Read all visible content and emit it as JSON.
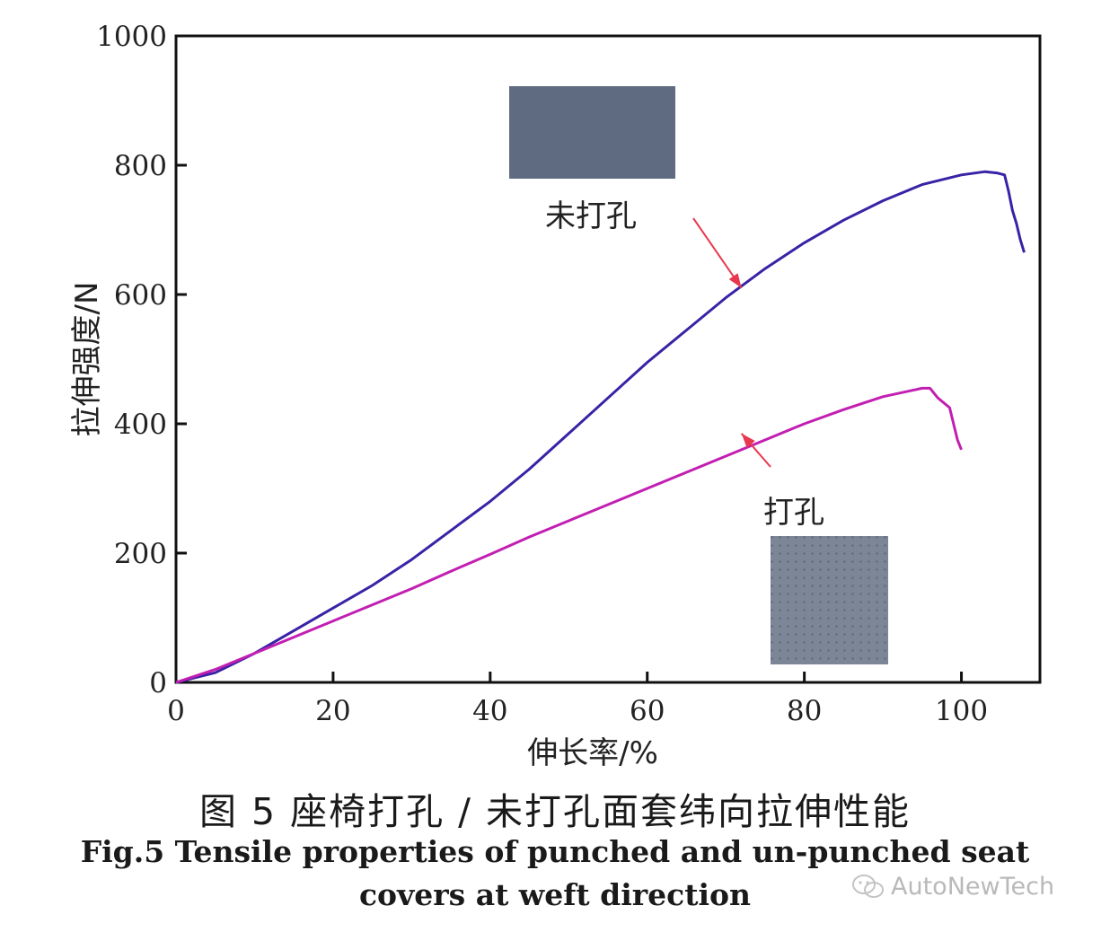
{
  "chart_data": {
    "type": "line",
    "xlabel": "伸长率/%",
    "ylabel": "拉伸强度/N",
    "xlim": [
      0,
      110
    ],
    "ylim": [
      0,
      1000
    ],
    "xticks": [
      0,
      20,
      40,
      60,
      80,
      100
    ],
    "yticks": [
      0,
      200,
      400,
      600,
      800,
      1000
    ],
    "grid": false,
    "colors": {
      "unpunched": "#3a22a6",
      "punched": "#c21fb2",
      "arrow": "#e8384f",
      "swatch_unpunched": "#5f6b80",
      "swatch_punched": "#7d8696"
    },
    "series": [
      {
        "name": "未打孔",
        "x": [
          0,
          5,
          10,
          15,
          20,
          25,
          30,
          35,
          40,
          45,
          50,
          55,
          60,
          65,
          70,
          75,
          80,
          85,
          90,
          95,
          100,
          103,
          104.5,
          105.5,
          106,
          106.5,
          107,
          107.5,
          108
        ],
        "y": [
          0,
          15,
          45,
          80,
          115,
          150,
          190,
          235,
          280,
          330,
          385,
          440,
          495,
          545,
          595,
          640,
          680,
          715,
          745,
          770,
          785,
          790,
          788,
          785,
          760,
          730,
          710,
          685,
          665
        ]
      },
      {
        "name": "打孔",
        "x": [
          0,
          5,
          10,
          15,
          20,
          25,
          30,
          35,
          40,
          45,
          50,
          55,
          60,
          65,
          70,
          75,
          80,
          85,
          90,
          95,
          96,
          97,
          98.5,
          99,
          99.5,
          100
        ],
        "y": [
          0,
          20,
          45,
          70,
          95,
          120,
          145,
          172,
          198,
          225,
          250,
          275,
          300,
          325,
          350,
          375,
          400,
          422,
          442,
          455,
          455,
          440,
          425,
          400,
          375,
          360
        ]
      }
    ],
    "annotations": [
      {
        "text": "未打孔",
        "arrow_to": [
          72,
          610
        ]
      },
      {
        "text": "打孔",
        "arrow_to": [
          72,
          385
        ]
      }
    ]
  },
  "caption": {
    "chinese": "图 5  座椅打孔 / 未打孔面套纬向拉伸性能",
    "english": "Fig.5 Tensile properties of punched and un-punched seat covers at weft direction"
  },
  "watermark": {
    "text": "AutoNewTech",
    "icon": "wechat-icon"
  }
}
